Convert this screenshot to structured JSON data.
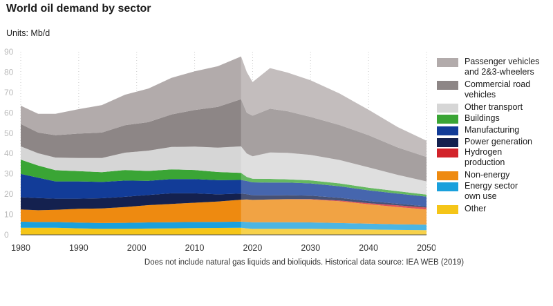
{
  "title": "World oil demand by sector",
  "units_label": "Units: Mb/d",
  "footnote": "Does not include natural gas liquids and bioliquids. Historical data source: IEA WEB (2019)",
  "chart_data": {
    "type": "area",
    "stacked": true,
    "x": [
      1980,
      1983,
      1986,
      1990,
      1994,
      1998,
      2002,
      2006,
      2010,
      2014,
      2018,
      2019,
      2020,
      2023,
      2026,
      2030,
      2035,
      2040,
      2045,
      2050
    ],
    "xlim": [
      1980,
      2050
    ],
    "ylim": [
      0,
      90
    ],
    "xticks": [
      1980,
      1990,
      2000,
      2010,
      2020,
      2030,
      2040,
      2050
    ],
    "yticks": [
      0,
      10,
      20,
      30,
      40,
      50,
      60,
      70,
      80,
      90
    ],
    "historical_until": 2018,
    "grid": "vertical dotted",
    "legend_position": "right",
    "series": [
      {
        "name": "Other",
        "color": "#f5c518",
        "values": [
          3.5,
          3.5,
          3.5,
          3.2,
          3.0,
          3.0,
          3.1,
          3.2,
          3.3,
          3.4,
          3.5,
          3.2,
          3.0,
          3.0,
          3.0,
          3.0,
          2.8,
          2.6,
          2.4,
          2.3
        ]
      },
      {
        "name": "Energy sector own use",
        "color": "#1aa0dc",
        "values": [
          3.0,
          2.8,
          2.8,
          2.8,
          2.8,
          2.9,
          3.0,
          3.0,
          3.0,
          3.0,
          3.0,
          3.2,
          3.2,
          3.2,
          3.2,
          3.1,
          3.0,
          2.9,
          2.8,
          2.7
        ]
      },
      {
        "name": "Non-energy",
        "color": "#ee8a10",
        "values": [
          6.0,
          5.8,
          6.0,
          6.8,
          7.2,
          7.8,
          8.5,
          9.0,
          9.5,
          10.0,
          10.8,
          11.0,
          11.0,
          11.2,
          11.3,
          11.3,
          10.7,
          9.5,
          8.5,
          7.5
        ]
      },
      {
        "name": "Hydrogen production",
        "color": "#d2232a",
        "values": [
          0,
          0,
          0,
          0,
          0,
          0,
          0,
          0,
          0,
          0,
          0,
          0,
          0,
          0,
          0.1,
          0.2,
          0.4,
          0.6,
          0.8,
          0.9
        ]
      },
      {
        "name": "Power generation",
        "color": "#14214f",
        "values": [
          6.0,
          6.0,
          5.5,
          5.0,
          5.0,
          5.0,
          5.0,
          5.2,
          4.6,
          3.5,
          3.0,
          2.6,
          2.3,
          2.0,
          1.9,
          1.7,
          1.3,
          1.0,
          0.8,
          0.6
        ]
      },
      {
        "name": "Manufacturing",
        "color": "#123c98",
        "values": [
          11.5,
          10.0,
          8.5,
          8.5,
          8.0,
          8.0,
          7.0,
          7.0,
          7.0,
          7.0,
          6.7,
          6.5,
          6.3,
          6.3,
          6.2,
          6.0,
          5.7,
          5.3,
          5.0,
          4.8
        ]
      },
      {
        "name": "Buildings",
        "color": "#3aa535",
        "values": [
          7.0,
          6.0,
          5.5,
          5.0,
          4.8,
          5.2,
          4.8,
          4.8,
          4.5,
          4.0,
          3.5,
          2.0,
          1.8,
          1.8,
          1.6,
          1.5,
          1.4,
          1.3,
          1.2,
          1.0
        ]
      },
      {
        "name": "Other transport",
        "color": "#d6d6d6",
        "values": [
          6.5,
          6.0,
          6.2,
          6.5,
          7.0,
          8.5,
          10.0,
          11.0,
          11.5,
          12.0,
          13.0,
          11.5,
          11.0,
          13.0,
          13.0,
          12.5,
          11.5,
          10.0,
          8.0,
          6.5
        ]
      },
      {
        "name": "Commercial road vehicles",
        "color": "#8d8686",
        "values": [
          11.0,
          10.2,
          11.0,
          12.0,
          12.5,
          13.5,
          14.0,
          16.0,
          18.0,
          20.0,
          23.2,
          20.0,
          20.0,
          21.5,
          20.5,
          18.7,
          17.2,
          15.8,
          13.5,
          12.0
        ]
      },
      {
        "name": "Passenger vehicles and 2&3-wheelers",
        "color": "#b2abab",
        "values": [
          9.0,
          9.2,
          10.5,
          12.0,
          13.5,
          15.0,
          16.5,
          18.0,
          19.0,
          20.0,
          21.0,
          20.0,
          16.5,
          20.0,
          19.0,
          18.0,
          15.5,
          12.5,
          10.0,
          8.0
        ]
      }
    ]
  },
  "legend": [
    {
      "line1": "Passenger vehicles",
      "line2": "and 2&3-wheelers",
      "color": "#b2abab"
    },
    {
      "line1": "Commercial road",
      "line2": "vehicles",
      "color": "#8d8686"
    },
    {
      "line1": "Other transport",
      "line2": "",
      "color": "#d6d6d6"
    },
    {
      "line1": "Buildings",
      "line2": "",
      "color": "#3aa535"
    },
    {
      "line1": "Manufacturing",
      "line2": "",
      "color": "#123c98"
    },
    {
      "line1": "Power generation",
      "line2": "",
      "color": "#14214f"
    },
    {
      "line1": "Hydrogen",
      "line2": "production",
      "color": "#d2232a"
    },
    {
      "line1": "Non-energy",
      "line2": "",
      "color": "#ee8a10"
    },
    {
      "line1": "Energy sector",
      "line2": "own use",
      "color": "#1aa0dc"
    },
    {
      "line1": "Other",
      "line2": "",
      "color": "#f5c518"
    }
  ]
}
